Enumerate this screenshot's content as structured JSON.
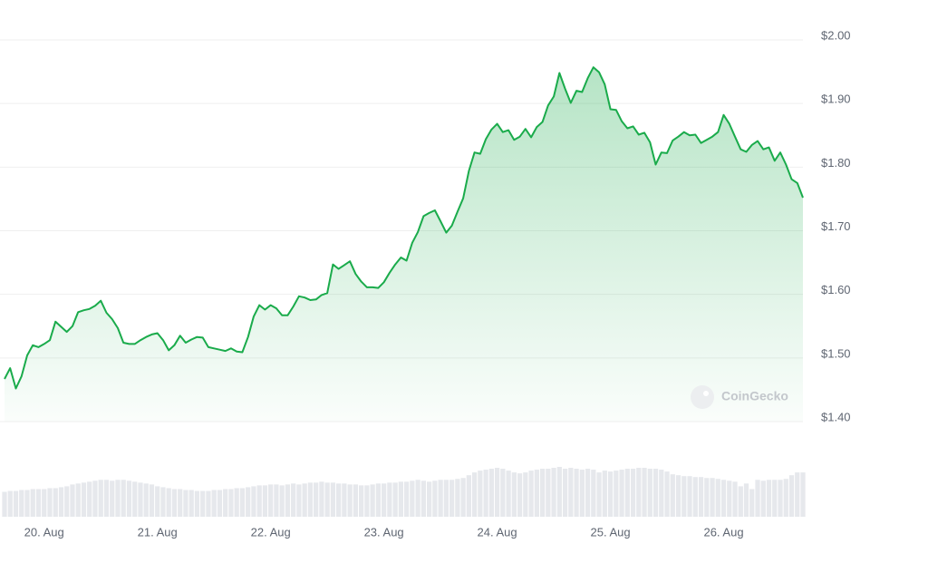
{
  "chart_data": {
    "type": "line",
    "watermark": "CoinGecko",
    "x": [
      null,
      null,
      null,
      null,
      null,
      null,
      null,
      "20. Aug",
      null,
      null,
      null,
      null,
      null,
      null,
      null,
      null,
      null,
      null,
      null,
      null,
      null,
      null,
      null,
      null,
      null,
      null,
      null,
      "21. Aug",
      null,
      null,
      null,
      null,
      null,
      null,
      null,
      null,
      null,
      null,
      null,
      null,
      null,
      null,
      null,
      null,
      null,
      null,
      null,
      "22. Aug",
      null,
      null,
      null,
      null,
      null,
      null,
      null,
      null,
      null,
      null,
      null,
      null,
      null,
      null,
      null,
      null,
      null,
      null,
      null,
      "23. Aug",
      null,
      null,
      null,
      null,
      null,
      null,
      null,
      null,
      null,
      null,
      null,
      null,
      null,
      null,
      null,
      null,
      null,
      null,
      null,
      "24. Aug",
      null,
      null,
      null,
      null,
      null,
      null,
      null,
      null,
      null,
      null,
      null,
      null,
      null,
      null,
      null,
      null,
      null,
      null,
      null,
      "25. Aug",
      null,
      null,
      null,
      null,
      null,
      null,
      null,
      null,
      null,
      null,
      null,
      null,
      null,
      null,
      null,
      null,
      null,
      null,
      null,
      "26. Aug",
      null,
      null,
      null,
      null,
      null,
      null,
      null,
      null,
      null,
      null,
      null,
      null,
      null,
      null
    ],
    "series": [
      {
        "color": "#1aab4b",
        "values": [
          1.467,
          1.484,
          1.452,
          1.471,
          1.504,
          1.52,
          1.517,
          1.522,
          1.528,
          1.557,
          1.549,
          1.541,
          1.55,
          1.572,
          1.575,
          1.577,
          1.582,
          1.59,
          1.571,
          1.561,
          1.547,
          1.524,
          1.522,
          1.522,
          1.528,
          1.533,
          1.537,
          1.539,
          1.528,
          1.512,
          1.52,
          1.535,
          1.524,
          1.529,
          1.533,
          1.532,
          1.517,
          1.515,
          1.513,
          1.511,
          1.515,
          1.51,
          1.509,
          1.533,
          1.565,
          1.583,
          1.576,
          1.583,
          1.578,
          1.567,
          1.567,
          1.581,
          1.597,
          1.595,
          1.591,
          1.592,
          1.599,
          1.602,
          1.647,
          1.64,
          1.646,
          1.652,
          1.632,
          1.62,
          1.611,
          1.611,
          1.61,
          1.619,
          1.634,
          1.647,
          1.658,
          1.653,
          1.681,
          1.698,
          1.723,
          1.728,
          1.732,
          1.715,
          1.697,
          1.708,
          1.73,
          1.751,
          1.794,
          1.823,
          1.821,
          1.844,
          1.859,
          1.868,
          1.855,
          1.858,
          1.843,
          1.848,
          1.86,
          1.847,
          1.863,
          1.871,
          1.897,
          1.911,
          1.948,
          1.923,
          1.901,
          1.92,
          1.918,
          1.94,
          1.957,
          1.949,
          1.93,
          1.891,
          1.89,
          1.872,
          1.861,
          1.864,
          1.851,
          1.854,
          1.839,
          1.804,
          1.823,
          1.822,
          1.842,
          1.848,
          1.855,
          1.85,
          1.851,
          1.838,
          1.843,
          1.848,
          1.855,
          1.882,
          1.868,
          1.848,
          1.828,
          1.824,
          1.835,
          1.841,
          1.828,
          1.831,
          1.81,
          1.823,
          1.804,
          1.781,
          1.775,
          1.752
        ]
      }
    ],
    "volume": {
      "color": "#e6e8ec",
      "values": [
        27,
        28,
        28,
        29,
        29,
        30,
        30,
        30,
        31,
        31,
        32,
        33,
        35,
        36,
        37,
        38,
        39,
        40,
        40,
        39,
        40,
        40,
        39,
        38,
        37,
        36,
        35,
        33,
        32,
        31,
        30,
        30,
        29,
        29,
        28,
        28,
        28,
        29,
        29,
        30,
        30,
        31,
        31,
        32,
        33,
        34,
        34,
        35,
        35,
        34,
        35,
        36,
        35,
        36,
        37,
        37,
        38,
        37,
        37,
        36,
        36,
        35,
        35,
        34,
        34,
        35,
        36,
        36,
        37,
        37,
        38,
        38,
        39,
        40,
        39,
        38,
        39,
        40,
        40,
        40,
        41,
        42,
        45,
        48,
        50,
        51,
        52,
        53,
        52,
        50,
        48,
        47,
        48,
        50,
        51,
        52,
        52,
        53,
        54,
        52,
        53,
        52,
        51,
        52,
        51,
        48,
        50,
        49,
        50,
        51,
        52,
        52,
        53,
        53,
        52,
        52,
        51,
        49,
        46,
        45,
        44,
        44,
        43,
        43,
        42,
        42,
        41,
        40,
        39,
        38,
        33,
        36,
        30,
        40,
        39,
        40,
        40,
        40,
        41,
        45,
        48,
        48
      ]
    },
    "ylim": [
      1.4,
      2.0
    ],
    "yticks": [
      {
        "value": 1.4,
        "label": "$1.40"
      },
      {
        "value": 1.5,
        "label": "$1.50"
      },
      {
        "value": 1.6,
        "label": "$1.60"
      },
      {
        "value": 1.7,
        "label": "$1.70"
      },
      {
        "value": 1.8,
        "label": "$1.80"
      },
      {
        "value": 1.9,
        "label": "$1.90"
      },
      {
        "value": 2.0,
        "label": "$2.00"
      }
    ],
    "grid": true
  }
}
